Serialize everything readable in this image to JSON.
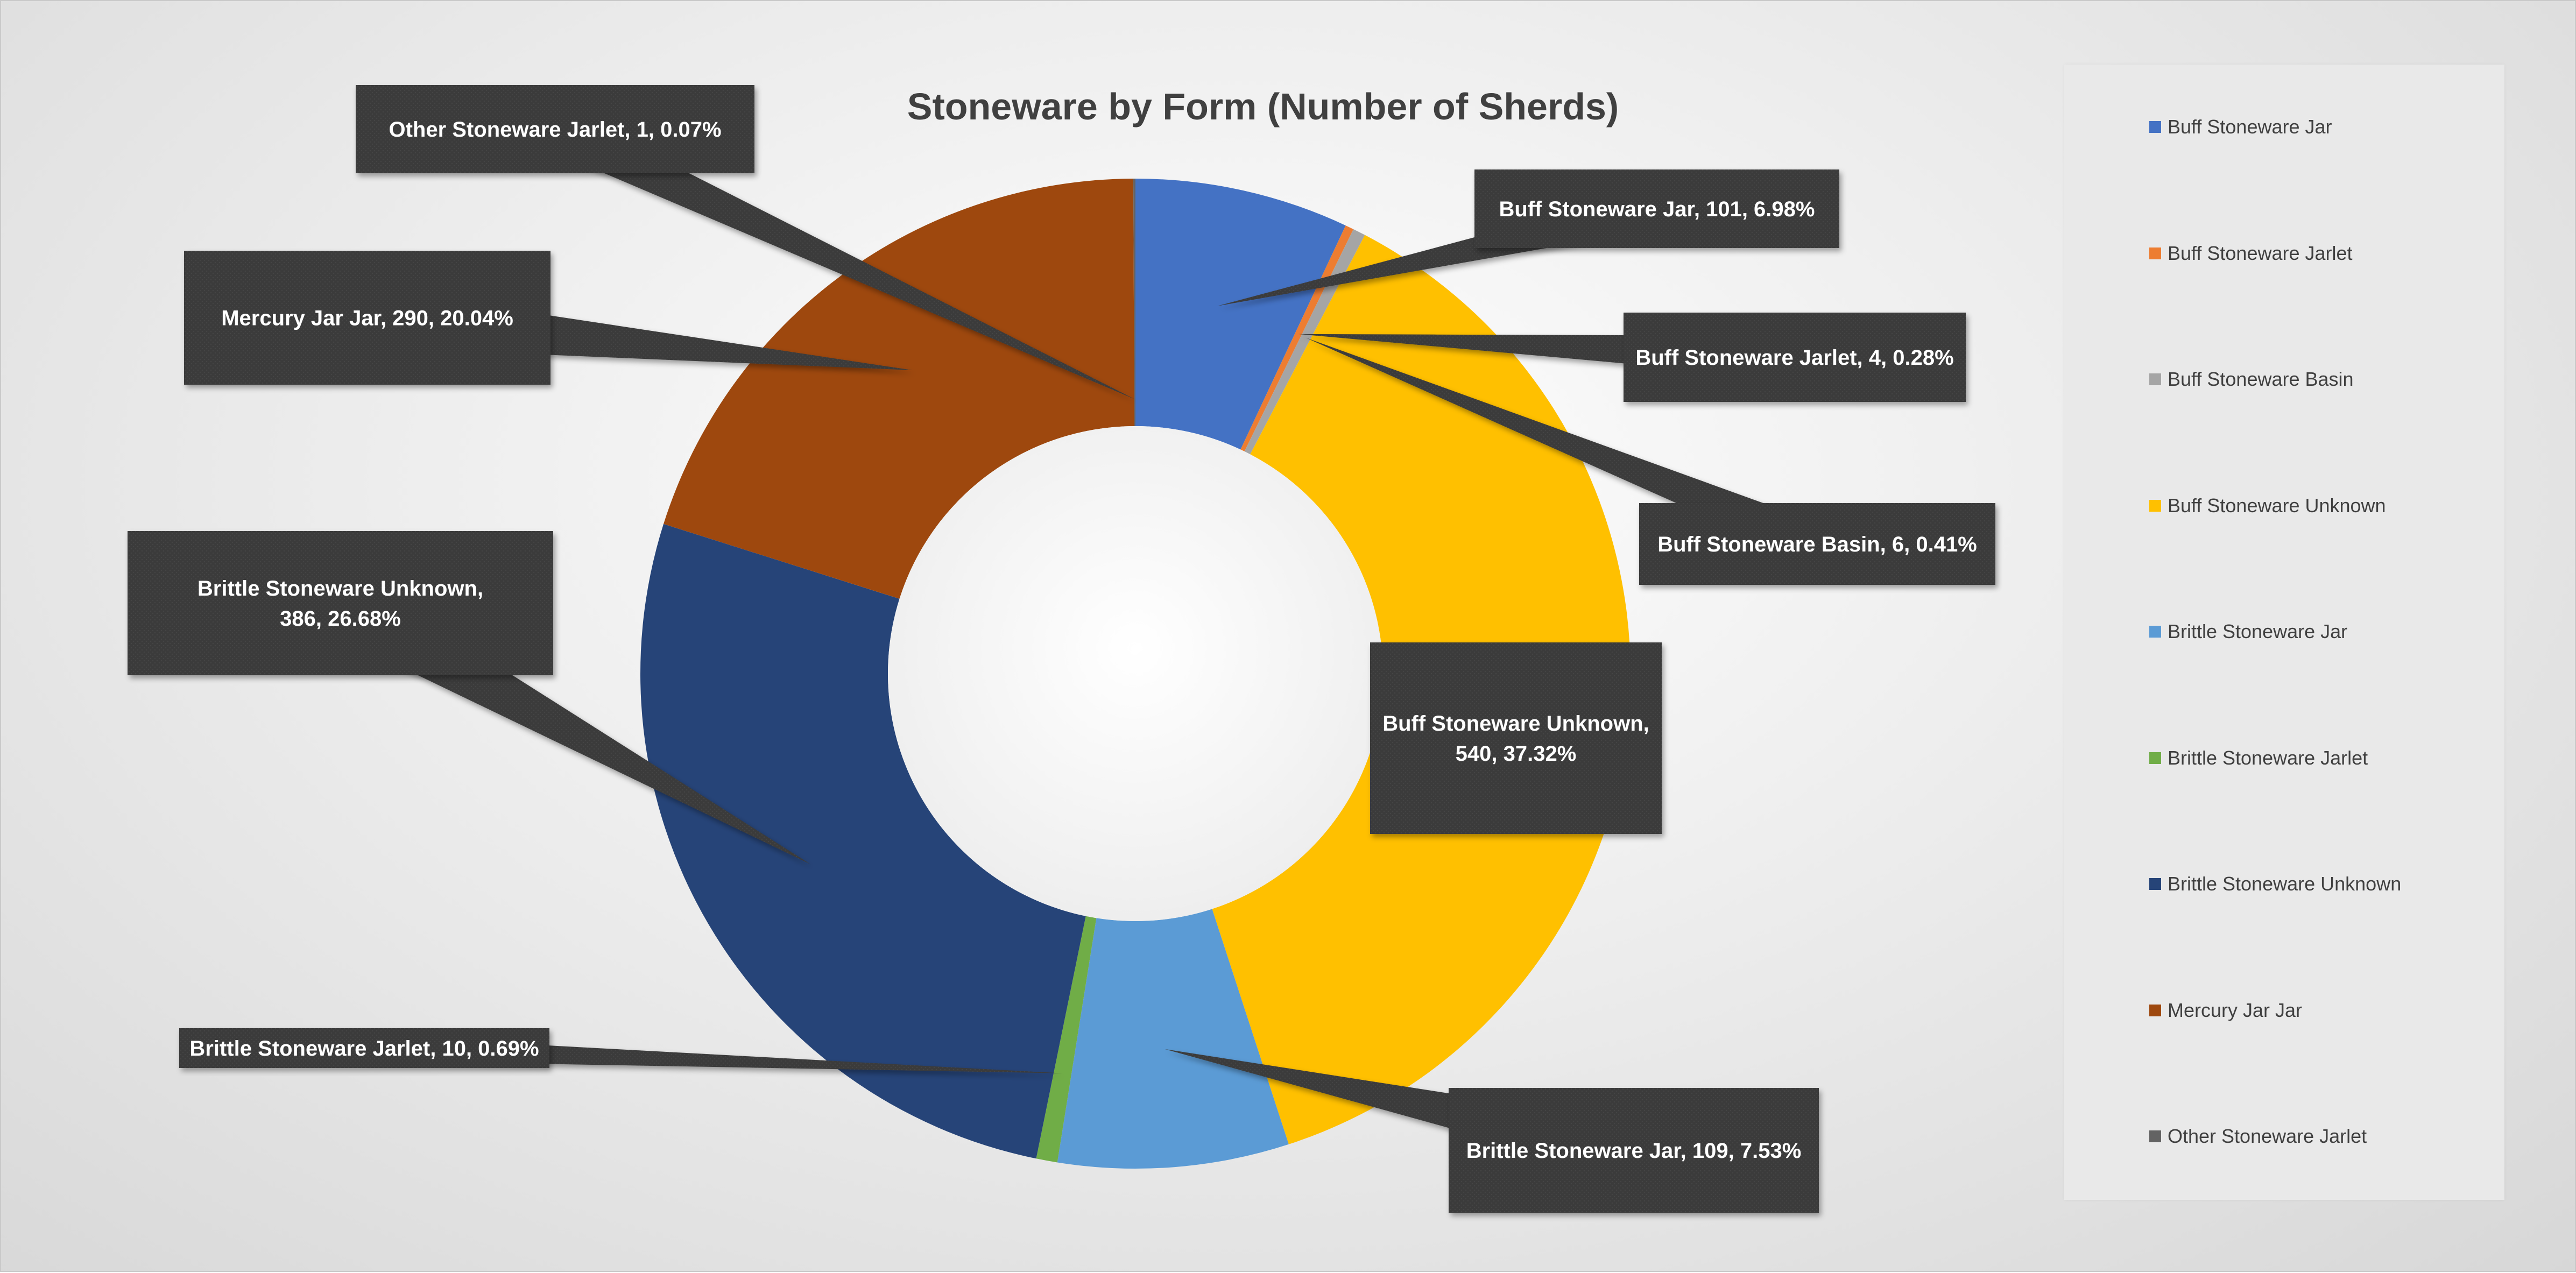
{
  "chart_data": {
    "type": "pie",
    "title": "Stoneware by Form (Number of Sherds)",
    "categories": [
      "Buff Stoneware Jar",
      "Buff Stoneware Jarlet",
      "Buff Stoneware Basin",
      "Buff Stoneware Unknown",
      "Brittle Stoneware Jar",
      "Brittle Stoneware Jarlet",
      "Brittle Stoneware Unknown",
      "Mercury Jar Jar",
      "Other Stoneware Jarlet"
    ],
    "values": [
      101,
      4,
      6,
      540,
      109,
      10,
      386,
      290,
      1
    ],
    "percentages": [
      6.98,
      0.28,
      0.41,
      37.32,
      7.53,
      0.69,
      26.68,
      20.04,
      0.07
    ],
    "colors": [
      "#4472C4",
      "#ED7D31",
      "#A5A5A5",
      "#FFC000",
      "#5B9BD5",
      "#70AD47",
      "#264478",
      "#9E480E",
      "#636363"
    ],
    "data_labels": [
      "Buff Stoneware Jar, 101, 6.98%",
      "Buff Stoneware Jarlet, 4, 0.28%",
      "Buff Stoneware Basin, 6, 0.41%",
      "Buff Stoneware Unknown, 540, 37.32%",
      "Brittle Stoneware Jar, 109, 7.53%",
      "Brittle Stoneware Jarlet, 10, 0.69%",
      "Brittle Stoneware Unknown, 386, 26.68%",
      "Mercury Jar Jar, 290, 20.04%",
      "Other Stoneware Jarlet, 1, 0.07%"
    ],
    "donut": true,
    "legend_position": "right"
  }
}
